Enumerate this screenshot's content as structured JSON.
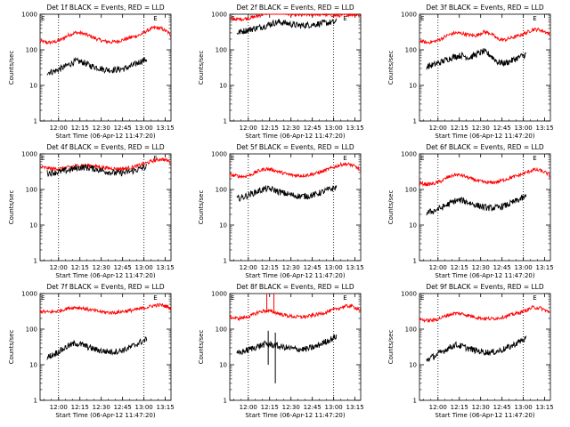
{
  "figure": {
    "start_label": "Start Time (06-Apr-12 11:47:20)",
    "ylabel": "Counts/sec",
    "flag_label": "E",
    "colors": {
      "events": "#000000",
      "lld": "#ff0000",
      "axis": "#000000",
      "background": "#ffffff"
    },
    "x_tick_labels": [
      "12:00",
      "12:15",
      "12:30",
      "12:45",
      "13:00",
      "13:15"
    ],
    "y_tick_labels": [
      "1",
      "10",
      "100",
      "1000"
    ]
  },
  "chart_data": [
    {
      "type": "line",
      "title": "Det 1f BLACK = Events, RED = LLD",
      "xlabel": "Start Time (06-Apr-12 11:47:20)",
      "ylabel": "Counts/sec",
      "x_unit": "minutes after 11:47:20",
      "xlim": [
        0,
        92
      ],
      "ylim": [
        1,
        1000
      ],
      "yscale": "log",
      "x_ticks": [
        "12:00",
        "12:15",
        "12:30",
        "12:45",
        "13:00",
        "13:15"
      ],
      "y_ticks": [
        "1",
        "10",
        "100",
        "1000"
      ],
      "flag_markers": [
        "E",
        "E"
      ],
      "series": [
        {
          "name": "LLD",
          "color": "#ff0000",
          "x": [
            0,
            5,
            10,
            15,
            20,
            25,
            30,
            35,
            40,
            45,
            50,
            55,
            60,
            65,
            70,
            75,
            80,
            85,
            90,
            92
          ],
          "values": [
            175,
            160,
            165,
            195,
            260,
            305,
            290,
            245,
            200,
            175,
            165,
            175,
            200,
            230,
            260,
            340,
            420,
            400,
            310,
            240
          ]
        },
        {
          "name": "Events",
          "color": "#000000",
          "x": [
            5,
            10,
            15,
            20,
            25,
            30,
            35,
            40,
            45,
            50,
            55,
            60,
            65,
            70,
            75
          ],
          "values": [
            23,
            25,
            30,
            38,
            48,
            45,
            36,
            32,
            28,
            27,
            28,
            30,
            36,
            46,
            55
          ]
        }
      ]
    },
    {
      "type": "line",
      "title": "Det 2f BLACK = Events, RED = LLD",
      "xlabel": "Start Time (06-Apr-12 11:47:20)",
      "ylabel": "Counts/sec",
      "x_unit": "minutes after 11:47:20",
      "xlim": [
        0,
        92
      ],
      "ylim": [
        1,
        1000
      ],
      "yscale": "log",
      "x_ticks": [
        "12:00",
        "12:15",
        "12:30",
        "12:45",
        "13:00",
        "13:15"
      ],
      "y_ticks": [
        "1",
        "10",
        "100",
        "1000"
      ],
      "flag_markers": [
        "E",
        "E"
      ],
      "series": [
        {
          "name": "LLD",
          "color": "#ff0000",
          "x": [
            0,
            5,
            10,
            15,
            20,
            25,
            30,
            35,
            40,
            45,
            50,
            55,
            60,
            65,
            70,
            75,
            80,
            85,
            90,
            92
          ],
          "values": [
            760,
            720,
            740,
            800,
            900,
            1050,
            1150,
            1150,
            1050,
            960,
            940,
            980,
            1000,
            1000,
            950,
            920,
            940,
            990,
            960,
            900
          ]
        },
        {
          "name": "Events",
          "color": "#000000",
          "x": [
            5,
            10,
            15,
            20,
            25,
            30,
            35,
            40,
            45,
            50,
            55,
            60,
            65,
            70,
            75
          ],
          "values": [
            300,
            340,
            380,
            420,
            470,
            560,
            600,
            560,
            500,
            480,
            500,
            520,
            560,
            580,
            600
          ]
        }
      ]
    },
    {
      "type": "line",
      "title": "Det 3f BLACK = Events, RED = LLD",
      "xlabel": "Start Time (06-Apr-12 11:47:20)",
      "ylabel": "Counts/sec",
      "x_unit": "minutes after 11:47:20",
      "xlim": [
        0,
        92
      ],
      "ylim": [
        1,
        1000
      ],
      "yscale": "log",
      "x_ticks": [
        "12:00",
        "12:15",
        "12:30",
        "12:45",
        "13:00",
        "13:15"
      ],
      "y_ticks": [
        "1",
        "10",
        "100",
        "1000"
      ],
      "flag_markers": [
        "E",
        "E"
      ],
      "series": [
        {
          "name": "LLD",
          "color": "#ff0000",
          "x": [
            0,
            5,
            10,
            15,
            20,
            25,
            30,
            35,
            40,
            45,
            50,
            55,
            60,
            65,
            70,
            75,
            80,
            85,
            90,
            92
          ],
          "values": [
            180,
            160,
            170,
            200,
            260,
            300,
            290,
            260,
            250,
            320,
            290,
            200,
            190,
            220,
            250,
            300,
            380,
            360,
            300,
            250
          ]
        },
        {
          "name": "Events",
          "color": "#000000",
          "x": [
            5,
            10,
            15,
            20,
            25,
            30,
            35,
            40,
            45,
            50,
            55,
            60,
            65,
            70,
            75
          ],
          "values": [
            34,
            38,
            45,
            55,
            65,
            70,
            60,
            75,
            90,
            70,
            45,
            42,
            50,
            62,
            75
          ]
        }
      ]
    },
    {
      "type": "line",
      "title": "Det 4f BLACK = Events, RED = LLD",
      "xlabel": "Start Time (06-Apr-12 11:47:20)",
      "ylabel": "Counts/sec",
      "x_unit": "minutes after 11:47:20",
      "xlim": [
        0,
        92
      ],
      "ylim": [
        1,
        1000
      ],
      "yscale": "log",
      "x_ticks": [
        "12:00",
        "12:15",
        "12:30",
        "12:45",
        "13:00",
        "13:15"
      ],
      "y_ticks": [
        "1",
        "10",
        "100",
        "1000"
      ],
      "flag_markers": [
        "E",
        "E"
      ],
      "series": [
        {
          "name": "LLD",
          "color": "#ff0000",
          "x": [
            0,
            5,
            10,
            15,
            20,
            25,
            30,
            35,
            40,
            45,
            50,
            55,
            60,
            65,
            70,
            75,
            80,
            85,
            90,
            92
          ],
          "values": [
            430,
            400,
            380,
            390,
            420,
            460,
            480,
            470,
            440,
            410,
            390,
            380,
            390,
            420,
            480,
            560,
            650,
            720,
            640,
            560
          ]
        },
        {
          "name": "Events",
          "color": "#000000",
          "x": [
            5,
            10,
            15,
            20,
            25,
            30,
            35,
            40,
            45,
            50,
            55,
            60,
            65,
            70,
            75
          ],
          "values": [
            290,
            300,
            320,
            350,
            390,
            420,
            400,
            370,
            330,
            300,
            290,
            300,
            330,
            380,
            440
          ]
        }
      ]
    },
    {
      "type": "line",
      "title": "Det 5f BLACK = Events, RED = LLD",
      "xlabel": "Start Time (06-Apr-12 11:47:20)",
      "ylabel": "Counts/sec",
      "x_unit": "minutes after 11:47:20",
      "xlim": [
        0,
        92
      ],
      "ylim": [
        1,
        1000
      ],
      "yscale": "log",
      "x_ticks": [
        "12:00",
        "12:15",
        "12:30",
        "12:45",
        "13:00",
        "13:15"
      ],
      "y_ticks": [
        "1",
        "10",
        "100",
        "1000"
      ],
      "flag_markers": [
        "E",
        "E"
      ],
      "series": [
        {
          "name": "LLD",
          "color": "#ff0000",
          "x": [
            0,
            5,
            10,
            15,
            20,
            25,
            30,
            35,
            40,
            45,
            50,
            55,
            60,
            65,
            70,
            75,
            80,
            85,
            90,
            92
          ],
          "values": [
            260,
            240,
            230,
            260,
            330,
            380,
            360,
            310,
            270,
            250,
            245,
            255,
            280,
            320,
            380,
            450,
            520,
            500,
            400,
            320
          ]
        },
        {
          "name": "Events",
          "color": "#000000",
          "x": [
            5,
            10,
            15,
            20,
            25,
            30,
            35,
            40,
            45,
            50,
            55,
            60,
            65,
            70,
            75
          ],
          "values": [
            55,
            62,
            75,
            90,
            105,
            100,
            85,
            75,
            68,
            64,
            66,
            72,
            85,
            100,
            115
          ]
        }
      ]
    },
    {
      "type": "line",
      "title": "Det 6f BLACK = Events, RED = LLD",
      "xlabel": "Start Time (06-Apr-12 11:47:20)",
      "ylabel": "Counts/sec",
      "x_unit": "minutes after 11:47:20",
      "xlim": [
        0,
        92
      ],
      "ylim": [
        1,
        1000
      ],
      "yscale": "log",
      "x_ticks": [
        "12:00",
        "12:15",
        "12:30",
        "12:45",
        "13:00",
        "13:15"
      ],
      "y_ticks": [
        "1",
        "10",
        "100",
        "1000"
      ],
      "flag_markers": [
        "E",
        "E"
      ],
      "series": [
        {
          "name": "LLD",
          "color": "#ff0000",
          "x": [
            0,
            5,
            10,
            15,
            20,
            25,
            30,
            35,
            40,
            45,
            50,
            55,
            60,
            65,
            70,
            75,
            80,
            85,
            90,
            92
          ],
          "values": [
            150,
            140,
            145,
            170,
            220,
            260,
            250,
            210,
            180,
            160,
            155,
            165,
            190,
            220,
            250,
            300,
            360,
            340,
            280,
            230
          ]
        },
        {
          "name": "Events",
          "color": "#000000",
          "x": [
            5,
            10,
            15,
            20,
            25,
            30,
            35,
            40,
            45,
            50,
            55,
            60,
            65,
            70,
            75
          ],
          "values": [
            22,
            25,
            30,
            38,
            48,
            50,
            42,
            36,
            32,
            30,
            31,
            35,
            42,
            52,
            62
          ]
        }
      ]
    },
    {
      "type": "line",
      "title": "Det 7f BLACK = Events, RED = LLD",
      "xlabel": "Start Time (06-Apr-12 11:47:20)",
      "ylabel": "Counts/sec",
      "x_unit": "minutes after 11:47:20",
      "xlim": [
        0,
        92
      ],
      "ylim": [
        1,
        1000
      ],
      "yscale": "log",
      "x_ticks": [
        "12:00",
        "12:15",
        "12:30",
        "12:45",
        "13:00",
        "13:15"
      ],
      "y_ticks": [
        "1",
        "10",
        "100",
        "1000"
      ],
      "flag_markers": [
        "E",
        "E"
      ],
      "series": [
        {
          "name": "LLD",
          "color": "#ff0000",
          "x": [
            0,
            5,
            10,
            15,
            20,
            25,
            30,
            35,
            40,
            45,
            50,
            55,
            60,
            65,
            70,
            75,
            80,
            85,
            90,
            92
          ],
          "values": [
            320,
            300,
            310,
            340,
            390,
            410,
            390,
            350,
            320,
            300,
            290,
            300,
            320,
            340,
            370,
            410,
            460,
            480,
            420,
            370
          ]
        },
        {
          "name": "Events",
          "color": "#000000",
          "x": [
            5,
            10,
            15,
            20,
            25,
            30,
            35,
            40,
            45,
            50,
            55,
            60,
            65,
            70,
            75
          ],
          "values": [
            16,
            20,
            26,
            34,
            40,
            36,
            30,
            26,
            24,
            23,
            24,
            27,
            33,
            42,
            52
          ]
        }
      ]
    },
    {
      "type": "line",
      "title": "Det 8f BLACK = Events, RED = LLD",
      "xlabel": "Start Time (06-Apr-12 11:47:20)",
      "ylabel": "Counts/sec",
      "x_unit": "minutes after 11:47:20",
      "xlim": [
        0,
        92
      ],
      "ylim": [
        1,
        1000
      ],
      "yscale": "log",
      "x_ticks": [
        "12:00",
        "12:15",
        "12:30",
        "12:45",
        "13:00",
        "13:15"
      ],
      "y_ticks": [
        "1",
        "10",
        "100",
        "1000"
      ],
      "flag_markers": [
        "E",
        "E"
      ],
      "series": [
        {
          "name": "LLD",
          "color": "#ff0000",
          "x": [
            0,
            5,
            10,
            15,
            20,
            25,
            30,
            35,
            40,
            45,
            50,
            55,
            60,
            65,
            70,
            75,
            80,
            85,
            90,
            92
          ],
          "values": [
            220,
            200,
            210,
            240,
            300,
            330,
            310,
            270,
            240,
            225,
            220,
            230,
            250,
            280,
            320,
            370,
            430,
            450,
            380,
            330
          ],
          "spikes": [
            {
              "x": 26,
              "values": [
                300,
                1000
              ]
            },
            {
              "x": 31,
              "values": [
                300,
                1000
              ]
            }
          ]
        },
        {
          "name": "Events",
          "color": "#000000",
          "x": [
            5,
            10,
            15,
            20,
            25,
            30,
            35,
            40,
            45,
            50,
            55,
            60,
            65,
            70,
            75
          ],
          "values": [
            20,
            24,
            28,
            33,
            38,
            36,
            32,
            30,
            28,
            27,
            28,
            32,
            40,
            50,
            62
          ],
          "spikes": [
            {
              "x": 27,
              "values": [
                10,
                90
              ]
            },
            {
              "x": 32,
              "values": [
                3,
                80
              ]
            }
          ]
        }
      ]
    },
    {
      "type": "line",
      "title": "Det 9f BLACK = Events, RED = LLD",
      "xlabel": "Start Time (06-Apr-12 11:47:20)",
      "ylabel": "Counts/sec",
      "x_unit": "minutes after 11:47:20",
      "xlim": [
        0,
        92
      ],
      "ylim": [
        1,
        1000
      ],
      "yscale": "log",
      "x_ticks": [
        "12:00",
        "12:15",
        "12:30",
        "12:45",
        "13:00",
        "13:15"
      ],
      "y_ticks": [
        "1",
        "10",
        "100",
        "1000"
      ],
      "flag_markers": [
        "E",
        "E"
      ],
      "series": [
        {
          "name": "LLD",
          "color": "#ff0000",
          "x": [
            0,
            5,
            10,
            15,
            20,
            25,
            30,
            35,
            40,
            45,
            50,
            55,
            60,
            65,
            70,
            75,
            80,
            85,
            90,
            92
          ],
          "values": [
            190,
            175,
            180,
            205,
            250,
            280,
            270,
            240,
            215,
            200,
            195,
            205,
            225,
            255,
            290,
            340,
            410,
            390,
            320,
            270
          ]
        },
        {
          "name": "Events",
          "color": "#000000",
          "x": [
            5,
            10,
            15,
            20,
            25,
            30,
            35,
            40,
            45,
            50,
            55,
            60,
            65,
            70,
            75
          ],
          "values": [
            14,
            17,
            22,
            29,
            36,
            33,
            28,
            25,
            23,
            22,
            24,
            28,
            34,
            44,
            55
          ]
        }
      ]
    }
  ]
}
